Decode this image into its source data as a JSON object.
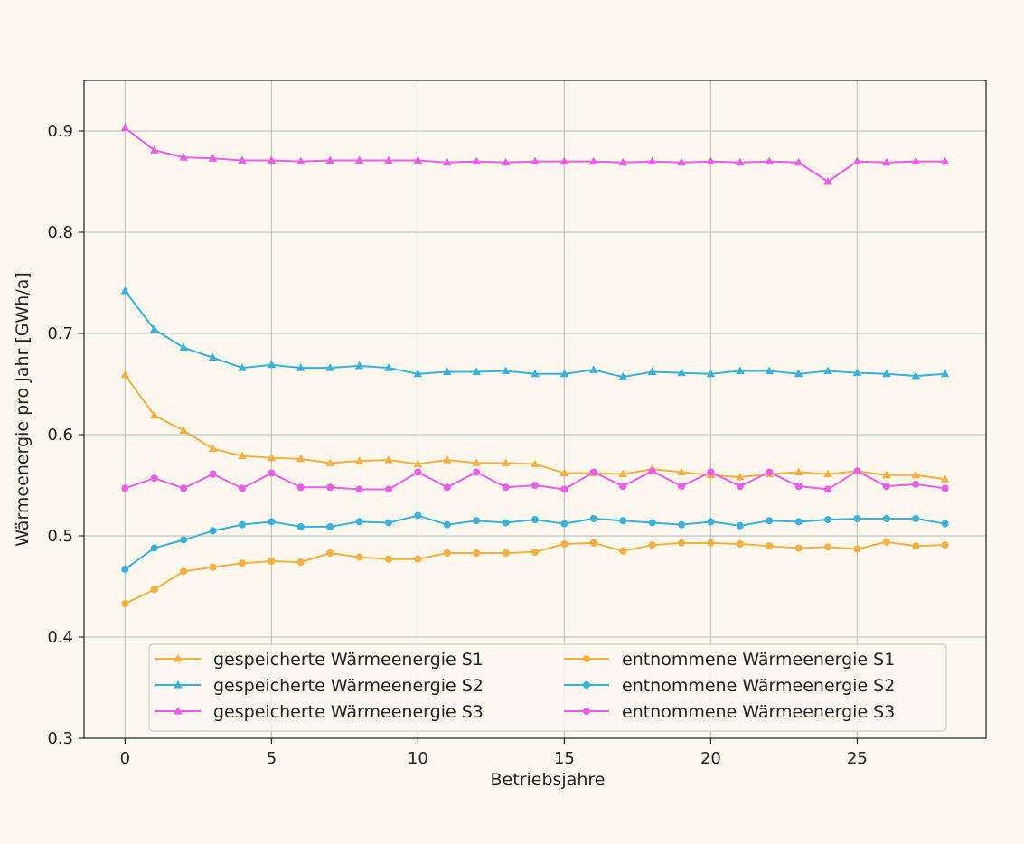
{
  "chart_data": {
    "type": "line",
    "xlabel": "Betriebsjahre",
    "ylabel": "Wärmeenergie pro Jahr [GWh/a]",
    "xlim": [
      -1.4,
      29.4
    ],
    "ylim": [
      0.3,
      0.95
    ],
    "xticks": [
      0,
      5,
      10,
      15,
      20,
      25
    ],
    "yticks": [
      0.3,
      0.4,
      0.5,
      0.6,
      0.7,
      0.8,
      0.9
    ],
    "grid": true,
    "legend_position": "lower-center",
    "x": [
      0,
      1,
      2,
      3,
      4,
      5,
      6,
      7,
      8,
      9,
      10,
      11,
      12,
      13,
      14,
      15,
      16,
      17,
      18,
      19,
      20,
      21,
      22,
      23,
      24,
      25,
      26,
      27,
      28
    ],
    "series": [
      {
        "name": "gespeicherte Wärmeenergie S1",
        "color": "#f5b041",
        "marker": "triangle",
        "values": [
          0.659,
          0.619,
          0.604,
          0.586,
          0.579,
          0.577,
          0.576,
          0.572,
          0.574,
          0.575,
          0.571,
          0.575,
          0.572,
          0.572,
          0.571,
          0.562,
          0.562,
          0.561,
          0.566,
          0.563,
          0.56,
          0.558,
          0.561,
          0.563,
          0.561,
          0.564,
          0.56,
          0.56,
          0.556
        ]
      },
      {
        "name": "gespeicherte Wärmeenergie S2",
        "color": "#3bb0d9",
        "marker": "triangle",
        "values": [
          0.742,
          0.704,
          0.686,
          0.676,
          0.666,
          0.669,
          0.666,
          0.666,
          0.668,
          0.666,
          0.66,
          0.662,
          0.662,
          0.663,
          0.66,
          0.66,
          0.664,
          0.657,
          0.662,
          0.661,
          0.66,
          0.663,
          0.663,
          0.66,
          0.663,
          0.661,
          0.66,
          0.658,
          0.66
        ]
      },
      {
        "name": "gespeicherte Wärmeenergie S3",
        "color": "#e85fe8",
        "marker": "triangle",
        "values": [
          0.903,
          0.881,
          0.874,
          0.873,
          0.871,
          0.871,
          0.87,
          0.871,
          0.871,
          0.871,
          0.871,
          0.869,
          0.87,
          0.869,
          0.87,
          0.87,
          0.87,
          0.869,
          0.87,
          0.869,
          0.87,
          0.869,
          0.87,
          0.869,
          0.85,
          0.87,
          0.869,
          0.87,
          0.87
        ]
      },
      {
        "name": "entnommene Wärmeenergie S1",
        "color": "#f5b041",
        "marker": "circle",
        "values": [
          0.433,
          0.447,
          0.465,
          0.469,
          0.473,
          0.475,
          0.474,
          0.483,
          0.479,
          0.477,
          0.477,
          0.483,
          0.483,
          0.483,
          0.484,
          0.492,
          0.493,
          0.485,
          0.491,
          0.493,
          0.493,
          0.492,
          0.49,
          0.488,
          0.489,
          0.487,
          0.494,
          0.49,
          0.491
        ]
      },
      {
        "name": "entnommene Wärmeenergie S2",
        "color": "#3bb0d9",
        "marker": "circle",
        "values": [
          0.467,
          0.488,
          0.496,
          0.505,
          0.511,
          0.514,
          0.509,
          0.509,
          0.514,
          0.513,
          0.52,
          0.511,
          0.515,
          0.513,
          0.516,
          0.512,
          0.517,
          0.515,
          0.513,
          0.511,
          0.514,
          0.51,
          0.515,
          0.514,
          0.516,
          0.517,
          0.517,
          0.517,
          0.512
        ]
      },
      {
        "name": "entnommene Wärmeenergie S3",
        "color": "#e85fe8",
        "marker": "circle",
        "values": [
          0.547,
          0.557,
          0.547,
          0.561,
          0.547,
          0.562,
          0.548,
          0.548,
          0.546,
          0.546,
          0.563,
          0.548,
          0.563,
          0.548,
          0.55,
          0.546,
          0.563,
          0.549,
          0.564,
          0.549,
          0.563,
          0.549,
          0.563,
          0.549,
          0.546,
          0.564,
          0.549,
          0.551,
          0.547
        ]
      }
    ]
  }
}
